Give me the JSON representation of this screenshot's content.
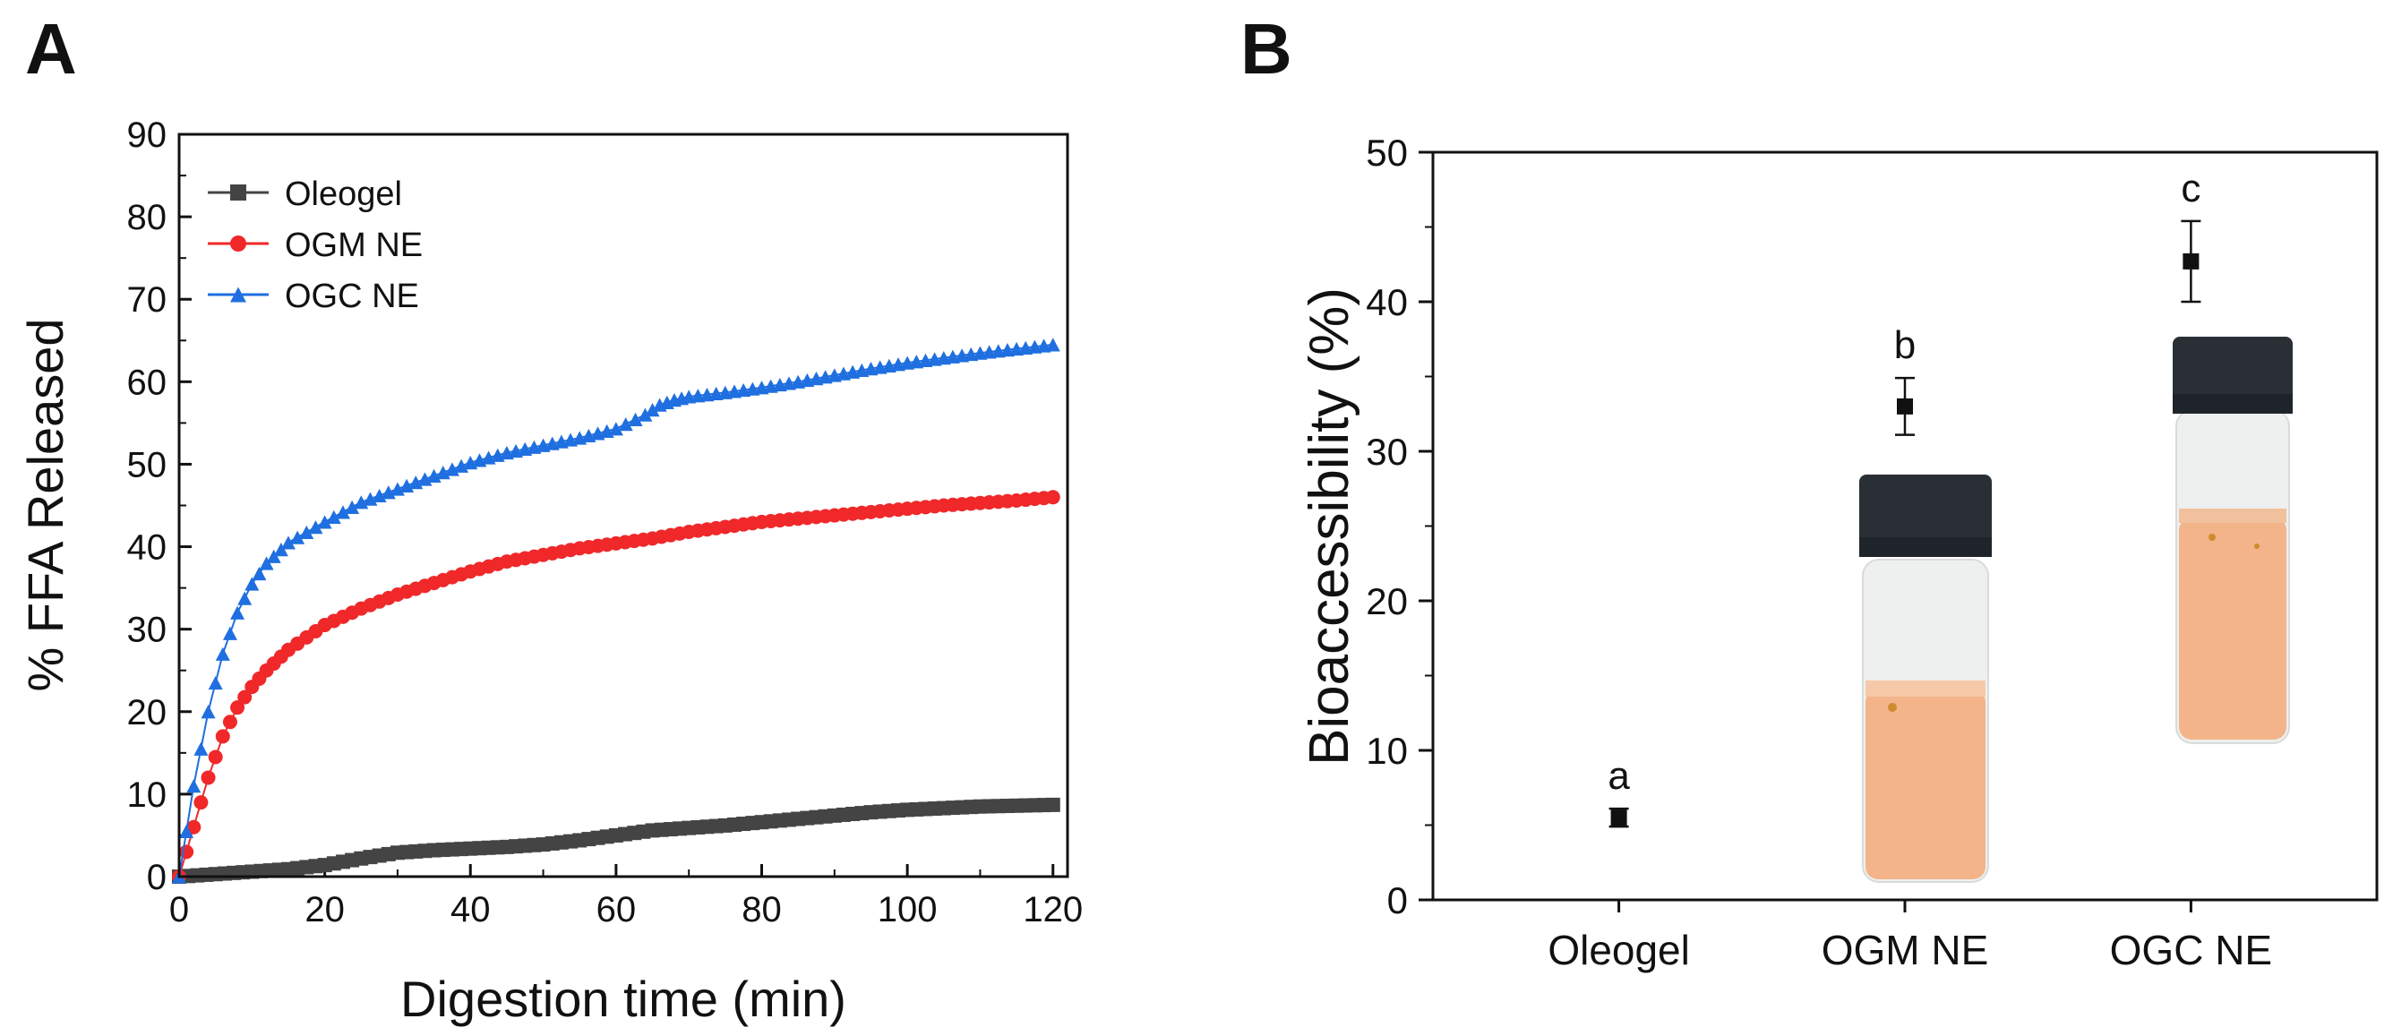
{
  "colors": {
    "oleogel": "#444444",
    "ogm": "#f0282a",
    "ogc": "#1f6fe0",
    "axis": "#111111",
    "cap": "#2a2f36",
    "liquid": "#f3b48a",
    "glass": "#eef0ef"
  },
  "chart_data": [
    {
      "panel": "A",
      "type": "scatter",
      "xlabel": "Digestion time (min)",
      "ylabel": "% FFA Released",
      "xlim": [
        0,
        122
      ],
      "ylim": [
        0,
        90
      ],
      "xticks": [
        0,
        20,
        40,
        60,
        80,
        100,
        120
      ],
      "yticks": [
        0,
        10,
        20,
        30,
        40,
        50,
        60,
        70,
        80,
        90
      ],
      "legend_position": "top-left",
      "series": [
        {
          "name": "Oleogel",
          "marker": "square",
          "color_key": "oleogel",
          "x": [
            0,
            5,
            10,
            15,
            20,
            25,
            30,
            35,
            40,
            45,
            50,
            55,
            60,
            65,
            70,
            75,
            80,
            85,
            90,
            95,
            100,
            105,
            110,
            115,
            120
          ],
          "y": [
            0,
            0.3,
            0.6,
            0.9,
            1.4,
            2.2,
            2.9,
            3.2,
            3.4,
            3.6,
            3.9,
            4.4,
            5.0,
            5.6,
            5.9,
            6.2,
            6.6,
            7.0,
            7.4,
            7.8,
            8.1,
            8.3,
            8.5,
            8.6,
            8.7
          ]
        },
        {
          "name": "OGM NE",
          "marker": "circle",
          "color_key": "ogm",
          "x": [
            0,
            2,
            4,
            6,
            8,
            10,
            12,
            15,
            20,
            25,
            30,
            35,
            40,
            45,
            50,
            55,
            60,
            65,
            70,
            75,
            80,
            85,
            90,
            95,
            100,
            105,
            110,
            115,
            120
          ],
          "y": [
            0,
            6,
            12,
            17,
            20.5,
            23,
            25,
            27.5,
            30.5,
            32.5,
            34.2,
            35.6,
            37,
            38.2,
            39,
            39.8,
            40.4,
            41,
            41.8,
            42.4,
            43,
            43.4,
            43.8,
            44.2,
            44.6,
            45,
            45.3,
            45.6,
            46
          ]
        },
        {
          "name": "OGC NE",
          "marker": "triangle",
          "color_key": "ogc",
          "x": [
            0,
            2,
            4,
            6,
            8,
            10,
            12,
            15,
            20,
            25,
            30,
            35,
            40,
            45,
            50,
            55,
            60,
            64,
            66,
            68,
            70,
            75,
            80,
            85,
            90,
            95,
            100,
            105,
            110,
            115,
            120
          ],
          "y": [
            0,
            11,
            20,
            27,
            32,
            35.5,
            38,
            40.5,
            43,
            45.4,
            47,
            48.6,
            50.2,
            51.4,
            52.3,
            53.2,
            54.3,
            56,
            57.2,
            57.8,
            58.2,
            58.7,
            59.3,
            60,
            60.8,
            61.6,
            62.3,
            62.9,
            63.5,
            64,
            64.5
          ]
        }
      ]
    },
    {
      "panel": "B",
      "type": "scatter",
      "xlabel": "",
      "ylabel": "Bioaccessibility (%)",
      "ylim": [
        0,
        50
      ],
      "yticks": [
        0,
        10,
        20,
        30,
        40,
        50
      ],
      "categories": [
        "Oleogel",
        "OGM NE",
        "OGC NE"
      ],
      "values": [
        5.5,
        33.0,
        42.7
      ],
      "errors": [
        0.6,
        1.9,
        2.7
      ],
      "letters": [
        "a",
        "b",
        "c"
      ]
    }
  ]
}
